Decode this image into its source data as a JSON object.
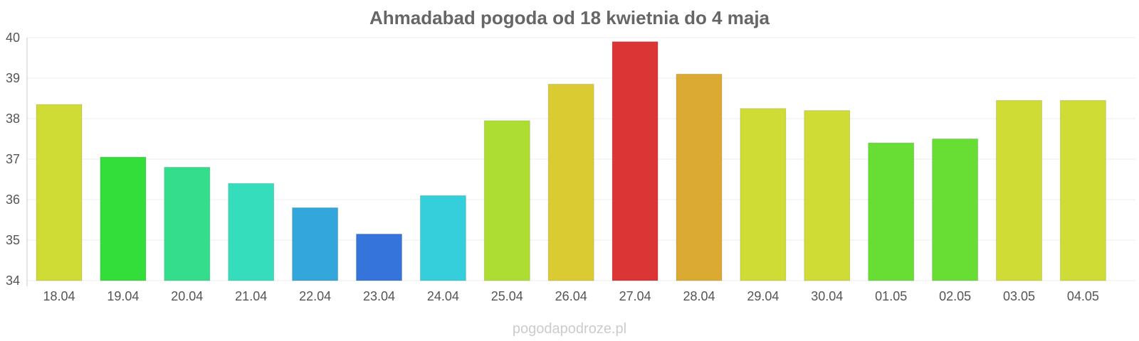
{
  "chart_data": {
    "type": "bar",
    "title": "Ahmadabad pogoda od 18 kwietnia do 4 maja",
    "xlabel": "",
    "ylabel": "",
    "ylim": [
      34,
      40
    ],
    "yticks": [
      34,
      35,
      36,
      37,
      38,
      39,
      40
    ],
    "grid": true,
    "categories": [
      "18.04",
      "19.04",
      "20.04",
      "21.04",
      "22.04",
      "23.04",
      "24.04",
      "25.04",
      "26.04",
      "27.04",
      "28.04",
      "29.04",
      "30.04",
      "01.05",
      "02.05",
      "03.05",
      "04.05"
    ],
    "values": [
      38.35,
      37.05,
      36.8,
      36.4,
      35.8,
      35.15,
      36.1,
      37.95,
      38.85,
      39.9,
      39.1,
      38.25,
      38.2,
      37.4,
      37.5,
      38.45,
      38.45
    ],
    "colors": [
      "#cfdc35",
      "#33dd3a",
      "#33dd8b",
      "#35ddbc",
      "#33a6db",
      "#3575db",
      "#35cfdc",
      "#addd33",
      "#dbcb33",
      "#db3535",
      "#dbaa33",
      "#cfdc35",
      "#cfdc35",
      "#68dd33",
      "#68dd33",
      "#cfdc35",
      "#cfdc35"
    ]
  },
  "watermark": "pogodapodroze.pl"
}
